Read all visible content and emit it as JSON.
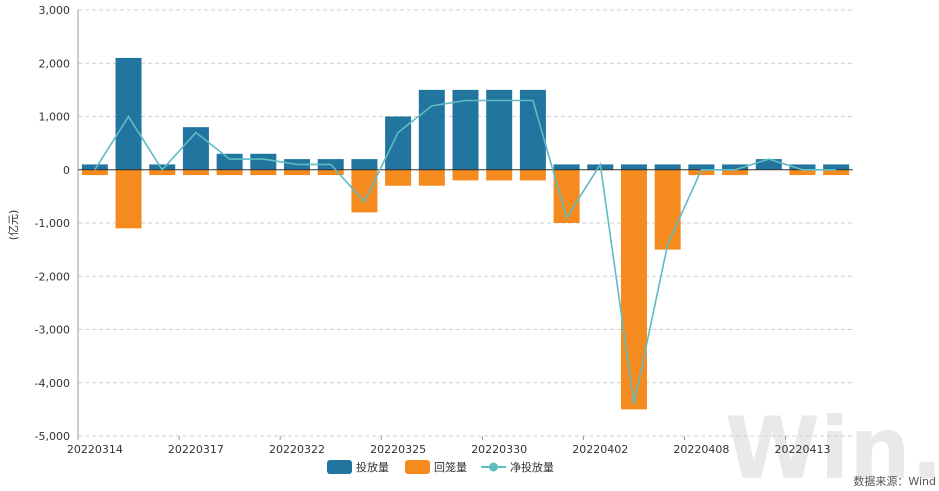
{
  "colors": {
    "injection": "#21759f",
    "maturity": "#f58b1f",
    "net": "#5fbcc3",
    "grid": "#cfcfcf",
    "axis": "#333333"
  },
  "chart_data": {
    "type": "bar",
    "ylabel": "(亿元)",
    "ylim": [
      -5000,
      3000
    ],
    "yticks": [
      3000,
      2000,
      1000,
      0,
      -1000,
      -2000,
      -3000,
      -4000,
      -5000
    ],
    "ytick_labels": [
      "3,000",
      "2,000",
      "1,000",
      "0",
      "-1,000",
      "-2,000",
      "-3,000",
      "-4,000",
      "-5,000"
    ],
    "grid": true,
    "legend_position": "bottom",
    "xtick_labels": [
      {
        "index": 0,
        "label": "20220314"
      },
      {
        "index": 3,
        "label": "20220317"
      },
      {
        "index": 6,
        "label": "20220322"
      },
      {
        "index": 9,
        "label": "20220325"
      },
      {
        "index": 12,
        "label": "20220330"
      },
      {
        "index": 15,
        "label": "20220402"
      },
      {
        "index": 18,
        "label": "20220408"
      },
      {
        "index": 21,
        "label": "20220413"
      }
    ],
    "series": [
      {
        "name": "投放量",
        "kind": "bar",
        "values": [
          100,
          2100,
          100,
          800,
          300,
          300,
          200,
          200,
          200,
          1000,
          1500,
          1500,
          1500,
          1500,
          100,
          100,
          100,
          100,
          100,
          100,
          200,
          100,
          100
        ]
      },
      {
        "name": "回笼量",
        "kind": "bar",
        "values": [
          -100,
          -1100,
          -100,
          -100,
          -100,
          -100,
          -100,
          -100,
          -800,
          -300,
          -300,
          -200,
          -200,
          -200,
          -1000,
          0,
          -4500,
          -1500,
          -100,
          -100,
          0,
          -100,
          -100
        ]
      },
      {
        "name": "净投放量",
        "kind": "line",
        "values": [
          0,
          1000,
          0,
          700,
          200,
          200,
          100,
          100,
          -600,
          700,
          1200,
          1300,
          1300,
          1300,
          -900,
          100,
          -4400,
          -1400,
          0,
          0,
          200,
          0,
          0
        ]
      }
    ]
  },
  "source_text": "数据来源：Wind",
  "watermark": "Win.d"
}
